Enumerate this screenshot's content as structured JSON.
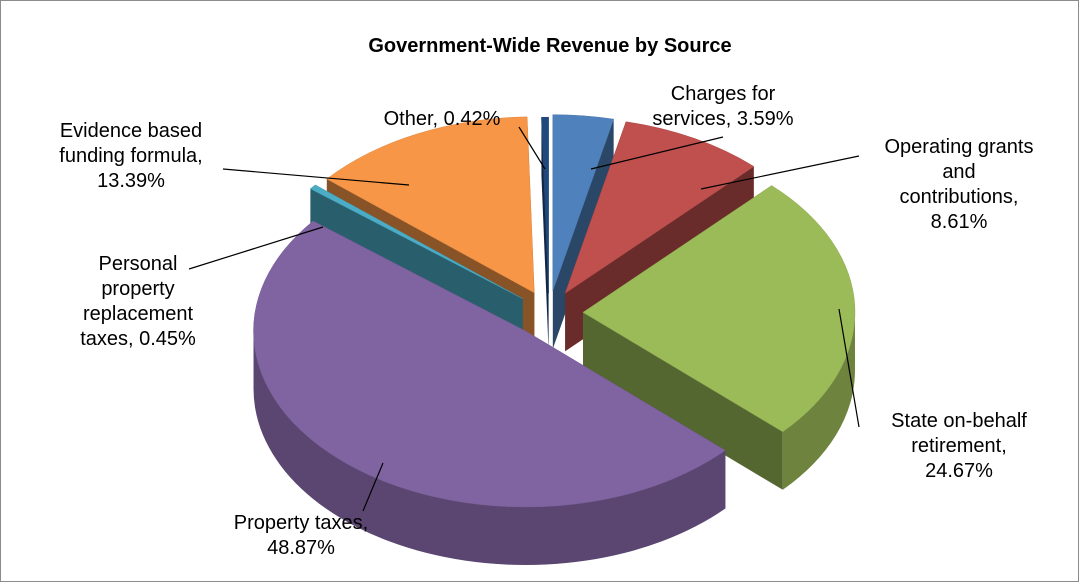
{
  "chart_data": {
    "type": "pie",
    "title": "Government-Wide Revenue by Source",
    "categories": [
      "Charges for services",
      "Operating grants and contributions",
      "State on-behalf retirement",
      "Property taxes",
      "Personal property replacement taxes",
      "Evidence based funding formula",
      "Other"
    ],
    "values": [
      3.59,
      8.61,
      24.67,
      48.87,
      0.45,
      13.39,
      0.42
    ],
    "value_unit": "%",
    "exploded": true,
    "three_d": true,
    "labels": [
      {
        "lines": [
          "Charges for",
          "services, 3.59%"
        ]
      },
      {
        "lines": [
          "Operating grants",
          "and",
          "contributions,",
          "8.61%"
        ]
      },
      {
        "lines": [
          "State on-behalf",
          "retirement,",
          "24.67%"
        ]
      },
      {
        "lines": [
          "Property taxes,",
          "48.87%"
        ]
      },
      {
        "lines": [
          "Personal",
          "property",
          "replacement",
          "taxes, 0.45%"
        ]
      },
      {
        "lines": [
          "Evidence based",
          "funding formula,",
          "13.39%"
        ]
      },
      {
        "lines": [
          "Other, 0.42%"
        ]
      }
    ],
    "colors": [
      "#4f81bd",
      "#c0504d",
      "#9bbb59",
      "#8064a2",
      "#4bacc6",
      "#f79646",
      "#1f497d"
    ],
    "legend": "none"
  }
}
